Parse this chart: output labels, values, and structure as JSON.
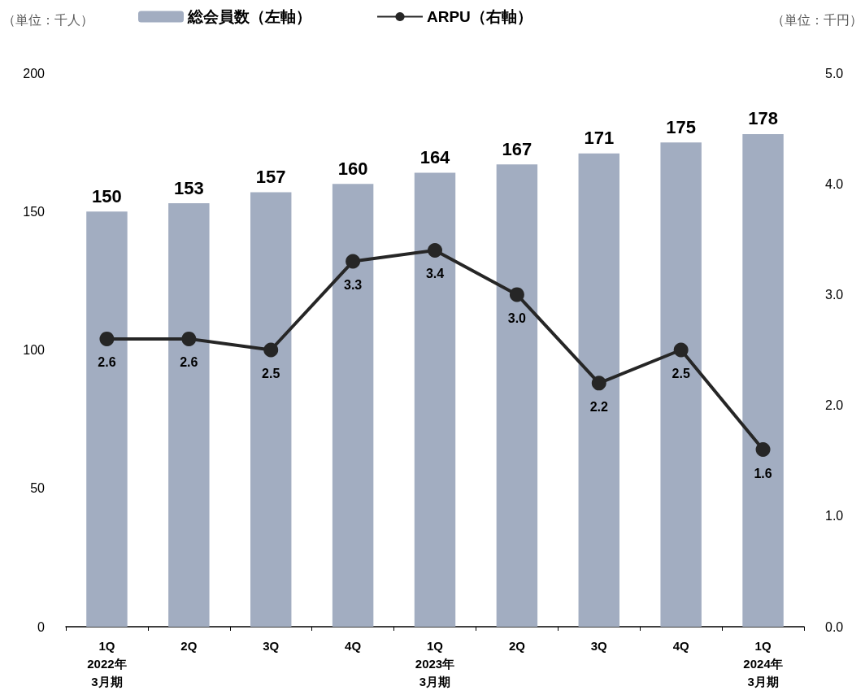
{
  "chart_data": {
    "type": "bar",
    "ylabel": "（単位：千人）",
    "y2label": "（単位：千円）",
    "categories": [
      "1Q\n2022年\n3月期",
      "2Q",
      "3Q",
      "4Q",
      "1Q\n2023年\n3月期",
      "2Q",
      "3Q",
      "4Q",
      "1Q\n2024年\n3月期"
    ],
    "series": [
      {
        "name": "総会員数（左軸）",
        "color": "#a2adc1",
        "values": [
          150,
          153,
          157,
          160,
          164,
          167,
          171,
          175,
          178
        ],
        "data_labels": true
      },
      {
        "name": "ARPU（右軸）",
        "type": "line",
        "axis": "y2",
        "color": "#262626",
        "marker": "circle",
        "values": [
          2.6,
          2.6,
          2.5,
          3.3,
          3.4,
          3.0,
          2.2,
          2.5,
          1.6
        ],
        "value_labels": [
          "2.6",
          "2.6",
          "2.5",
          "3.3",
          "3.4",
          "3.0",
          "2.2",
          "2.5",
          "1.6"
        ]
      }
    ],
    "ylim": [
      0,
      200
    ],
    "yticks": [
      0,
      50,
      100,
      150,
      200
    ],
    "y2lim": [
      0,
      5
    ],
    "y2ticks": [
      {
        "value": 0,
        "label": "0.0"
      },
      {
        "value": 1,
        "label": "1.0"
      },
      {
        "value": 2,
        "label": "2.0"
      },
      {
        "value": 3,
        "label": "3.0"
      },
      {
        "value": 4,
        "label": "4.0"
      },
      {
        "value": 5,
        "label": "5.0"
      }
    ],
    "grid": false,
    "legend": "top"
  }
}
